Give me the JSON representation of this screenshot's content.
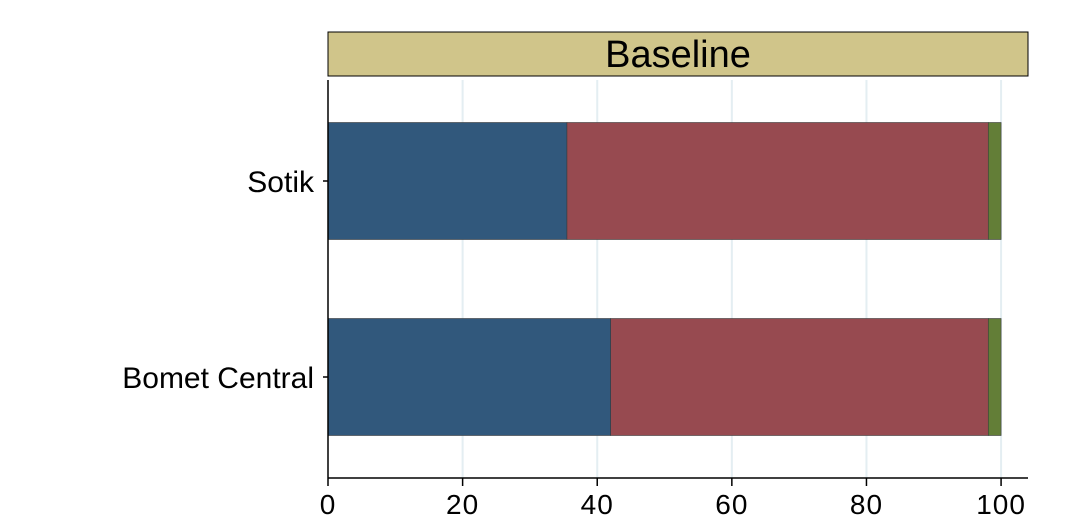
{
  "chart_data": {
    "type": "bar",
    "orientation": "horizontal",
    "stacked": true,
    "title": "Baseline",
    "categories": [
      "Sotik",
      "Bomet Central"
    ],
    "series": [
      {
        "values": [
          35.5,
          42.0
        ],
        "color": "#31587c"
      },
      {
        "values": [
          62.6,
          56.1
        ],
        "color": "#974a50"
      },
      {
        "values": [
          1.9,
          1.9
        ],
        "color": "#637e37"
      }
    ],
    "x_ticks": [
      "0",
      "20",
      "40",
      "60",
      "80",
      "100"
    ],
    "xlim": [
      0,
      104
    ],
    "grid": true,
    "legend": "none",
    "title_band_color": "#d0c58a"
  }
}
